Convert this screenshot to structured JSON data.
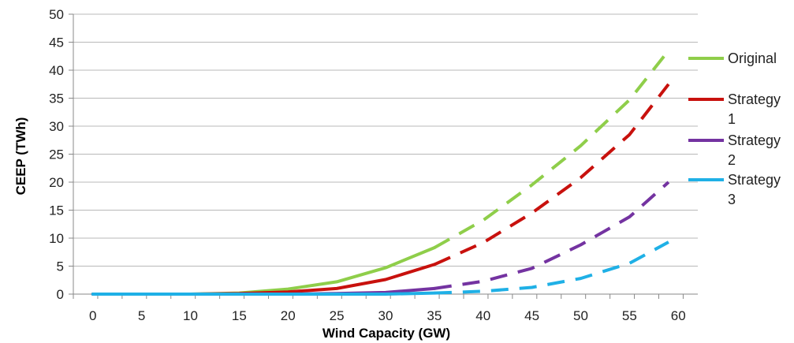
{
  "chart_data": {
    "type": "line",
    "title": "",
    "xlabel": "Wind Capacity (GW)",
    "ylabel": "CEEP (TWh)",
    "xlim": [
      -2,
      62
    ],
    "ylim": [
      0,
      50
    ],
    "xticks": [
      0,
      5,
      10,
      15,
      20,
      25,
      30,
      35,
      40,
      45,
      50,
      55,
      60
    ],
    "yticks": [
      0,
      5,
      10,
      15,
      20,
      25,
      30,
      35,
      40,
      45,
      50
    ],
    "grid": "horizontal",
    "legend_position": "right",
    "line_style_note": "solid up to 35 GW, dashed above",
    "x": [
      0,
      5,
      10,
      15,
      20,
      25,
      30,
      35,
      40,
      45,
      50,
      55,
      59
    ],
    "series": [
      {
        "name": "Original",
        "legend_lines": [
          "Original"
        ],
        "color": "#8fce4a",
        "values": [
          0,
          0,
          0,
          0.2,
          0.9,
          2.2,
          4.7,
          8.3,
          13.2,
          19.5,
          26.5,
          34.7,
          43.5
        ]
      },
      {
        "name": "Strategy 1",
        "legend_lines": [
          "Strategy",
          "1"
        ],
        "color": "#c8110d",
        "values": [
          0,
          0,
          0,
          0.1,
          0.4,
          1.0,
          2.6,
          5.3,
          9.2,
          14.5,
          20.8,
          28.5,
          37.5
        ]
      },
      {
        "name": "Strategy 2",
        "legend_lines": [
          "Strategy",
          "2"
        ],
        "color": "#7433a1",
        "values": [
          0,
          0,
          0,
          0,
          0,
          0.1,
          0.3,
          1.0,
          2.3,
          4.6,
          8.8,
          13.8,
          20.0
        ]
      },
      {
        "name": "Strategy 3",
        "legend_lines": [
          "Strategy",
          "3"
        ],
        "color": "#1fb0e6",
        "values": [
          0,
          0,
          0,
          0,
          0,
          0,
          0,
          0.2,
          0.5,
          1.2,
          2.8,
          5.5,
          9.3
        ]
      }
    ]
  }
}
